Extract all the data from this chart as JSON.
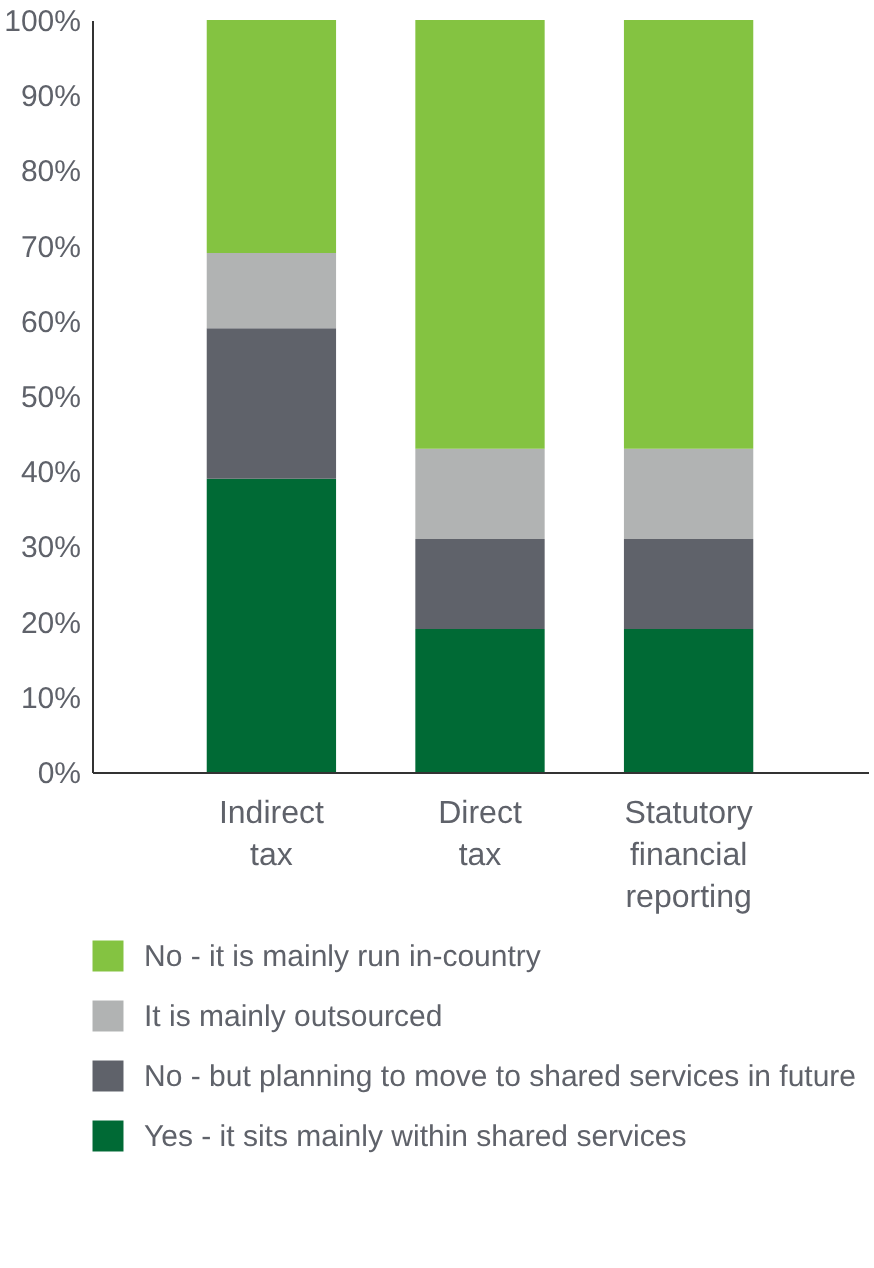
{
  "chart_data": {
    "type": "bar",
    "stacked": true,
    "categories": [
      "Indirect tax",
      "Direct tax",
      "Statutory financial reporting"
    ],
    "series": [
      {
        "name": "Yes - it sits mainly within shared services",
        "color": "#006a35",
        "values": [
          39,
          19,
          19
        ]
      },
      {
        "name": "No - but planning to move to shared services in future",
        "color": "#5f626a",
        "values": [
          20,
          12,
          12
        ]
      },
      {
        "name": "It is mainly outsourced",
        "color": "#b1b3b3",
        "values": [
          10,
          12,
          12
        ]
      },
      {
        "name": "No - it is mainly run in-country",
        "color": "#84c341",
        "values": [
          31,
          57,
          57
        ]
      }
    ],
    "ylim": [
      0,
      100
    ],
    "yticks": [
      {
        "value": 0,
        "label": "0%"
      },
      {
        "value": 10,
        "label": "10%"
      },
      {
        "value": 20,
        "label": "20%"
      },
      {
        "value": 30,
        "label": "30%"
      },
      {
        "value": 40,
        "label": "40%"
      },
      {
        "value": 50,
        "label": "50%"
      },
      {
        "value": 60,
        "label": "60%"
      },
      {
        "value": 70,
        "label": "70%"
      },
      {
        "value": 80,
        "label": "80%"
      },
      {
        "value": 90,
        "label": "90%"
      },
      {
        "value": 100,
        "label": "100%"
      }
    ],
    "grid": false,
    "legend": "bottom"
  }
}
